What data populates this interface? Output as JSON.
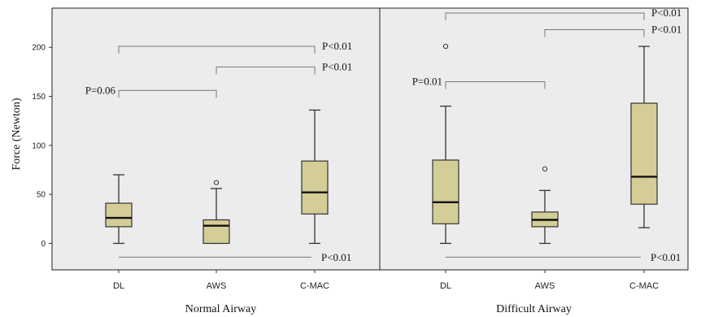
{
  "chart_data": {
    "type": "boxplot",
    "ylabel": "Force (Newton)",
    "ylim": [
      -27,
      240
    ],
    "yticks": [
      0,
      50,
      100,
      150,
      200
    ],
    "grid": false,
    "panels": [
      {
        "title": "Normal Airway",
        "categories": [
          "DL",
          "AWS",
          "C-MAC"
        ],
        "boxes": [
          {
            "min": 0,
            "q1": 17,
            "median": 26,
            "q3": 41,
            "max": 70,
            "outliers": []
          },
          {
            "min": 0,
            "q1": 0,
            "median": 18,
            "q3": 24,
            "max": 56,
            "outliers": [
              62
            ]
          },
          {
            "min": 0,
            "q1": 30,
            "median": 52,
            "q3": 84,
            "max": 136,
            "outliers": []
          }
        ],
        "comparisons": [
          {
            "from": "DL",
            "to": "C-MAC",
            "y": 201,
            "label": "P<0.01"
          },
          {
            "from": "AWS",
            "to": "C-MAC",
            "y": 180,
            "label": "P<0.01"
          },
          {
            "from": "DL",
            "to": "AWS",
            "y": 156,
            "label": "P=0.06"
          },
          {
            "from": "DL",
            "to": "C-MAC",
            "y": -14,
            "label": "P<0.01",
            "style": "line"
          }
        ]
      },
      {
        "title": "Difficult Airway",
        "categories": [
          "DL",
          "AWS",
          "C-MAC"
        ],
        "boxes": [
          {
            "min": 0,
            "q1": 20,
            "median": 42,
            "q3": 85,
            "max": 140,
            "outliers": [
              201
            ]
          },
          {
            "min": 0,
            "q1": 17,
            "median": 24,
            "q3": 32,
            "max": 54,
            "outliers": [
              76
            ]
          },
          {
            "min": 16,
            "q1": 40,
            "median": 68,
            "q3": 143,
            "max": 201,
            "outliers": []
          }
        ],
        "comparisons": [
          {
            "from": "DL",
            "to": "C-MAC",
            "y": 235,
            "label": "P<0.01"
          },
          {
            "from": "AWS",
            "to": "C-MAC",
            "y": 218,
            "label": "P<0.01"
          },
          {
            "from": "DL",
            "to": "AWS",
            "y": 165,
            "label": "P=0.01"
          },
          {
            "from": "DL",
            "to": "C-MAC",
            "y": -14,
            "label": "P<0.01",
            "style": "line"
          }
        ]
      }
    ],
    "colors": {
      "panel_bg": "#ececec",
      "box_fill": "#d4cd97",
      "box_stroke": "#333333",
      "bracket": "#777777"
    }
  }
}
